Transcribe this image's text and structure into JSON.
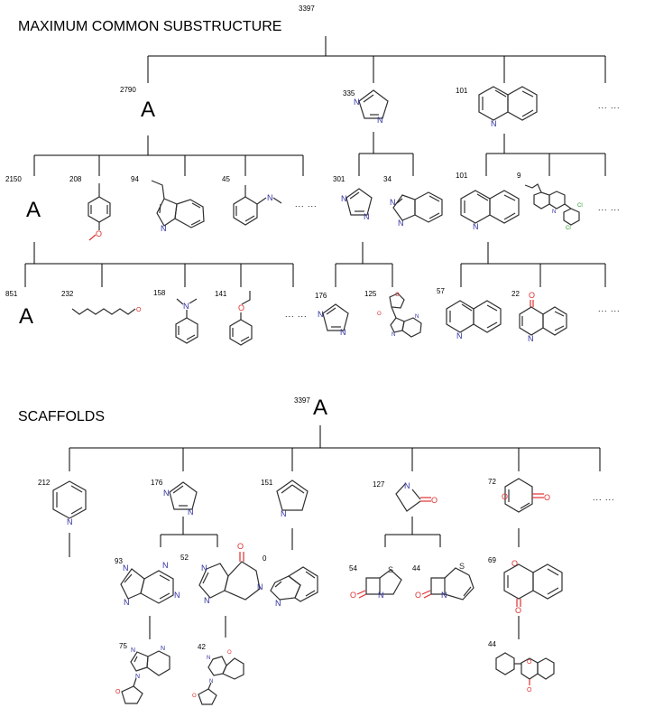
{
  "sections": {
    "mcs": {
      "title": "MAXIMUM COMMON SUBSTRUCTURE"
    },
    "scaffolds": {
      "title": "SCAFFOLDS"
    }
  },
  "labels": {
    "any_atom": "A",
    "ellipsis": "... ..."
  },
  "atoms": {
    "N": "N",
    "O": "O",
    "S": "S",
    "Cl": "Cl"
  },
  "mcs_tree": {
    "root": {
      "count": "3397"
    },
    "level1": [
      {
        "count": "2790",
        "structure": "any-atom"
      },
      {
        "count": "335",
        "structure": "imidazole"
      },
      {
        "count": "101",
        "structure": "quinoline"
      }
    ],
    "level2": [
      {
        "count": "2150",
        "structure": "any-atom"
      },
      {
        "count": "208",
        "structure": "para-methoxy-toluene"
      },
      {
        "count": "94",
        "structure": "3-ethyl-indole"
      },
      {
        "count": "45",
        "structure": "n-methyl-ortho-toluidine"
      },
      {
        "count": "301",
        "structure": "imidazole"
      },
      {
        "count": "34",
        "structure": "benzimidazole"
      },
      {
        "count": "101",
        "structure": "quinoline"
      },
      {
        "count": "9",
        "structure": "chlorinated-polycycle"
      }
    ],
    "level3": [
      {
        "count": "851",
        "structure": "any-atom"
      },
      {
        "count": "232",
        "structure": "alkyl-chain"
      },
      {
        "count": "158",
        "structure": "n-n-dimethylaniline"
      },
      {
        "count": "141",
        "structure": "ethoxybenzene"
      },
      {
        "count": "176",
        "structure": "imidazole"
      },
      {
        "count": "125",
        "structure": "purine-nucleoside"
      },
      {
        "count": "57",
        "structure": "quinoline"
      },
      {
        "count": "22",
        "structure": "quinolinone"
      }
    ]
  },
  "scaffold_tree": {
    "root": {
      "count": "3397"
    },
    "level1": [
      {
        "count": "212",
        "structure": "pyridine"
      },
      {
        "count": "176",
        "structure": "imidazole"
      },
      {
        "count": "151",
        "structure": "pyrrole"
      },
      {
        "count": "127",
        "structure": "beta-lactam"
      },
      {
        "count": "72",
        "structure": "pyranone"
      }
    ],
    "level2": [
      {
        "count": "93",
        "structure": "purine"
      },
      {
        "count": "52",
        "structure": "pteridinone"
      },
      {
        "count": "0",
        "structure": "indole"
      },
      {
        "count": "54",
        "structure": "penam"
      },
      {
        "count": "44",
        "structure": "cephem"
      },
      {
        "count": "69",
        "structure": "chromone"
      }
    ],
    "level3": [
      {
        "count": "75",
        "structure": "purine-thf"
      },
      {
        "count": "42",
        "structure": "pteridinone-thf"
      },
      {
        "count": "44",
        "structure": "flavone"
      }
    ]
  }
}
